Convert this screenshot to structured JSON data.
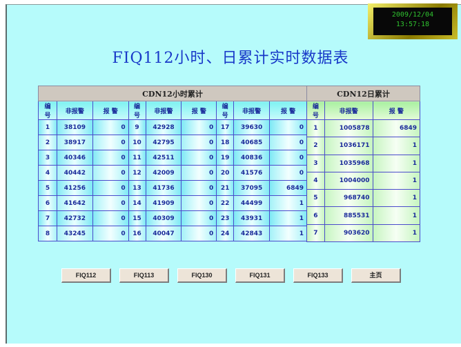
{
  "clock": {
    "date": "2009/12/04",
    "time": "13:57:18"
  },
  "title": "FIQ112小时、日累计实时数据表",
  "hour_table": {
    "title": "CDN12小时累计",
    "columns": [
      "编号",
      "非报警",
      "报 警"
    ],
    "rows": [
      [
        [
          "1",
          "38109",
          "0"
        ],
        [
          "9",
          "42928",
          "0"
        ],
        [
          "17",
          "39630",
          "0"
        ]
      ],
      [
        [
          "2",
          "38917",
          "0"
        ],
        [
          "10",
          "42795",
          "0"
        ],
        [
          "18",
          "40685",
          "0"
        ]
      ],
      [
        [
          "3",
          "40346",
          "0"
        ],
        [
          "11",
          "42511",
          "0"
        ],
        [
          "19",
          "40836",
          "0"
        ]
      ],
      [
        [
          "4",
          "40442",
          "0"
        ],
        [
          "12",
          "42009",
          "0"
        ],
        [
          "20",
          "41576",
          "0"
        ]
      ],
      [
        [
          "5",
          "41256",
          "0"
        ],
        [
          "13",
          "41736",
          "0"
        ],
        [
          "21",
          "37095",
          "6849"
        ]
      ],
      [
        [
          "6",
          "41642",
          "0"
        ],
        [
          "14",
          "41909",
          "0"
        ],
        [
          "22",
          "44499",
          "1"
        ]
      ],
      [
        [
          "7",
          "42732",
          "0"
        ],
        [
          "15",
          "40309",
          "0"
        ],
        [
          "23",
          "43931",
          "1"
        ]
      ],
      [
        [
          "8",
          "43245",
          "0"
        ],
        [
          "16",
          "40047",
          "0"
        ],
        [
          "24",
          "42843",
          "1"
        ]
      ]
    ]
  },
  "day_table": {
    "title": "CDN12日累计",
    "columns": [
      "编号",
      "非报警",
      "报 警"
    ],
    "rows": [
      [
        "1",
        "1005878",
        "6849"
      ],
      [
        "2",
        "1036171",
        "1"
      ],
      [
        "3",
        "1035968",
        "1"
      ],
      [
        "4",
        "1004000",
        "1"
      ],
      [
        "5",
        "968740",
        "1"
      ],
      [
        "6",
        "885531",
        "1"
      ],
      [
        "7",
        "903620",
        "1"
      ]
    ]
  },
  "buttons": [
    "FIQ112",
    "FIQ113",
    "FIQ130",
    "FIQ131",
    "FIQ133",
    "主页"
  ]
}
